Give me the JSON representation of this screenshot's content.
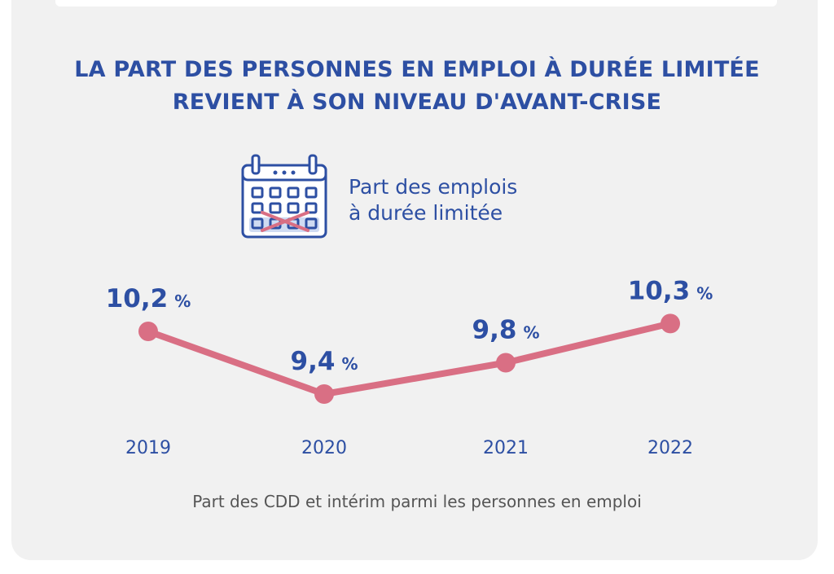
{
  "title_line1": "LA PART DES PERSONNES EN EMPLOI À DURÉE LIMITÉE",
  "title_line2": "REVIENT À SON NIVEAU D'AVANT-CRISE",
  "legend": {
    "icon": "calendar-crossed-icon",
    "line1": "Part des emplois",
    "line2": "à durée limitée"
  },
  "footnote": "Part des CDD et intérim parmi les personnes en emploi",
  "colors": {
    "accent": "#2d4fa3",
    "line": "#d96f84",
    "background": "#f1f1f1",
    "footnote": "#555555"
  },
  "chart_data": {
    "type": "line",
    "categories": [
      "2019",
      "2020",
      "2021",
      "2022"
    ],
    "values": [
      10.2,
      9.4,
      9.8,
      10.3
    ],
    "value_labels": [
      "10,2",
      "9,4",
      "9,8",
      "10,3"
    ],
    "unit": "%"
  }
}
